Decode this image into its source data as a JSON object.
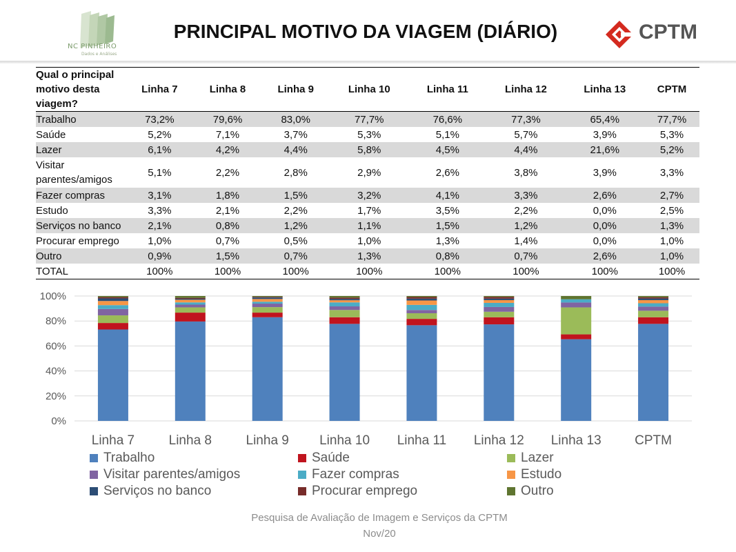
{
  "header": {
    "title": "PRINCIPAL MOTIVO DA VIAGEM (DIÁRIO)",
    "logo_left_text": "NC PINHEIRO",
    "logo_left_sub": "Dados e Análises",
    "logo_right_text": "CPTM"
  },
  "table": {
    "header_question": "Qual o principal motivo desta viagem?",
    "columns": [
      "Linha 7",
      "Linha 8",
      "Linha 9",
      "Linha 10",
      "Linha 11",
      "Linha 12",
      "Linha 13",
      "CPTM"
    ],
    "rows": [
      {
        "label": "Trabalho",
        "values": [
          "73,2%",
          "79,6%",
          "83,0%",
          "77,7%",
          "76,6%",
          "77,3%",
          "65,4%",
          "77,7%"
        ]
      },
      {
        "label": "Saúde",
        "values": [
          "5,2%",
          "7,1%",
          "3,7%",
          "5,3%",
          "5,1%",
          "5,7%",
          "3,9%",
          "5,3%"
        ]
      },
      {
        "label": "Lazer",
        "values": [
          "6,1%",
          "4,2%",
          "4,4%",
          "5,8%",
          "4,5%",
          "4,4%",
          "21,6%",
          "5,2%"
        ]
      },
      {
        "label": "Visitar parentes/amigos",
        "values": [
          "5,1%",
          "2,2%",
          "2,8%",
          "2,9%",
          "2,6%",
          "3,8%",
          "3,9%",
          "3,3%"
        ]
      },
      {
        "label": "Fazer compras",
        "values": [
          "3,1%",
          "1,8%",
          "1,5%",
          "3,2%",
          "4,1%",
          "3,3%",
          "2,6%",
          "2,7%"
        ]
      },
      {
        "label": "Estudo",
        "values": [
          "3,3%",
          "2,1%",
          "2,2%",
          "1,7%",
          "3,5%",
          "2,2%",
          "0,0%",
          "2,5%"
        ]
      },
      {
        "label": "Serviços no banco",
        "values": [
          "2,1%",
          "0,8%",
          "1,2%",
          "1,1%",
          "1,5%",
          "1,2%",
          "0,0%",
          "1,3%"
        ]
      },
      {
        "label": "Procurar emprego",
        "values": [
          "1,0%",
          "0,7%",
          "0,5%",
          "1,0%",
          "1,3%",
          "1,4%",
          "0,0%",
          "1,0%"
        ]
      },
      {
        "label": "Outro",
        "values": [
          "0,9%",
          "1,5%",
          "0,7%",
          "1,3%",
          "0,8%",
          "0,7%",
          "2,6%",
          "1,0%"
        ]
      },
      {
        "label": "TOTAL",
        "values": [
          "100%",
          "100%",
          "100%",
          "100%",
          "100%",
          "100%",
          "100%",
          "100%"
        ]
      }
    ]
  },
  "chart_data": {
    "type": "bar",
    "stacked": true,
    "categories": [
      "Linha 7",
      "Linha 8",
      "Linha 9",
      "Linha 10",
      "Linha 11",
      "Linha 12",
      "Linha 13",
      "CPTM"
    ],
    "ylim": [
      0,
      100
    ],
    "yticks": [
      "0%",
      "20%",
      "40%",
      "60%",
      "80%",
      "100%"
    ],
    "grid": true,
    "legend_position": "bottom",
    "series": [
      {
        "name": "Trabalho",
        "color": "#4f81bd",
        "values": [
          73.2,
          79.6,
          83.0,
          77.7,
          76.6,
          77.3,
          65.4,
          77.7
        ]
      },
      {
        "name": "Saúde",
        "color": "#c0141e",
        "values": [
          5.2,
          7.1,
          3.7,
          5.3,
          5.1,
          5.7,
          3.9,
          5.3
        ]
      },
      {
        "name": "Lazer",
        "color": "#9bbb59",
        "values": [
          6.1,
          4.2,
          4.4,
          5.8,
          4.5,
          4.4,
          21.6,
          5.2
        ]
      },
      {
        "name": "Visitar parentes/amigos",
        "color": "#8064a2",
        "values": [
          5.1,
          2.2,
          2.8,
          2.9,
          2.6,
          3.8,
          3.9,
          3.3
        ]
      },
      {
        "name": "Fazer compras",
        "color": "#4bacc6",
        "values": [
          3.1,
          1.8,
          1.5,
          3.2,
          4.1,
          3.3,
          2.6,
          2.7
        ]
      },
      {
        "name": "Estudo",
        "color": "#f79646",
        "values": [
          3.3,
          2.1,
          2.2,
          1.7,
          3.5,
          2.2,
          0.0,
          2.5
        ]
      },
      {
        "name": "Serviços no banco",
        "color": "#2c4d75",
        "values": [
          2.1,
          0.8,
          1.2,
          1.1,
          1.5,
          1.2,
          0.0,
          1.3
        ]
      },
      {
        "name": "Procurar emprego",
        "color": "#772c2a",
        "values": [
          1.0,
          0.7,
          0.5,
          1.0,
          1.3,
          1.4,
          0.0,
          1.0
        ]
      },
      {
        "name": "Outro",
        "color": "#5f7530",
        "values": [
          0.9,
          1.5,
          0.7,
          1.3,
          0.8,
          0.7,
          2.6,
          1.0
        ]
      }
    ]
  },
  "footer": {
    "line1": "Pesquisa de Avaliação de Imagem  e Serviços da CPTM",
    "line2": "Nov/20"
  }
}
